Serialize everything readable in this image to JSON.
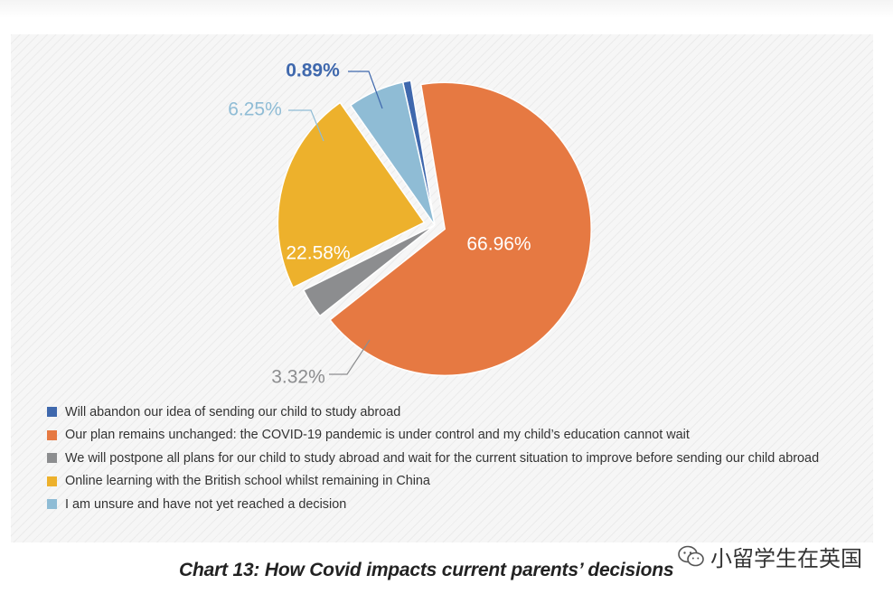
{
  "chart_data": {
    "type": "pie",
    "title": "Chart 13: How Covid impacts current parents’ decisions",
    "slices": [
      {
        "label": "Will abandon our idea of sending our child to study abroad",
        "value": 0.89,
        "value_label": "0.89%",
        "color": "#3f68ad",
        "exploded": false,
        "label_side": "outside"
      },
      {
        "label": "Our plan remains unchanged: the COVID-19 pandemic is under control and my child’s education cannot wait",
        "value": 66.96,
        "value_label": "66.96%",
        "color": "#e67942",
        "exploded": true,
        "label_side": "inside"
      },
      {
        "label": "We will postpone all plans for our child to study abroad and wait for the current situation to improve before sending our child abroad",
        "value": 3.32,
        "value_label": "3.32%",
        "color": "#8c8d8f",
        "exploded": false,
        "label_side": "outside"
      },
      {
        "label": "Online learning with the British school whilst remaining in China",
        "value": 22.58,
        "value_label": "22.58%",
        "color": "#edb12c",
        "exploded": true,
        "label_side": "inside"
      },
      {
        "label": "I am unsure and have not yet reached a decision",
        "value": 6.25,
        "value_label": "6.25%",
        "color": "#8fbcd5",
        "exploded": false,
        "label_side": "outside"
      }
    ],
    "legend_position": "bottom-left"
  },
  "watermark": {
    "text": "小留学生在英国",
    "icon": "wechat-icon"
  }
}
